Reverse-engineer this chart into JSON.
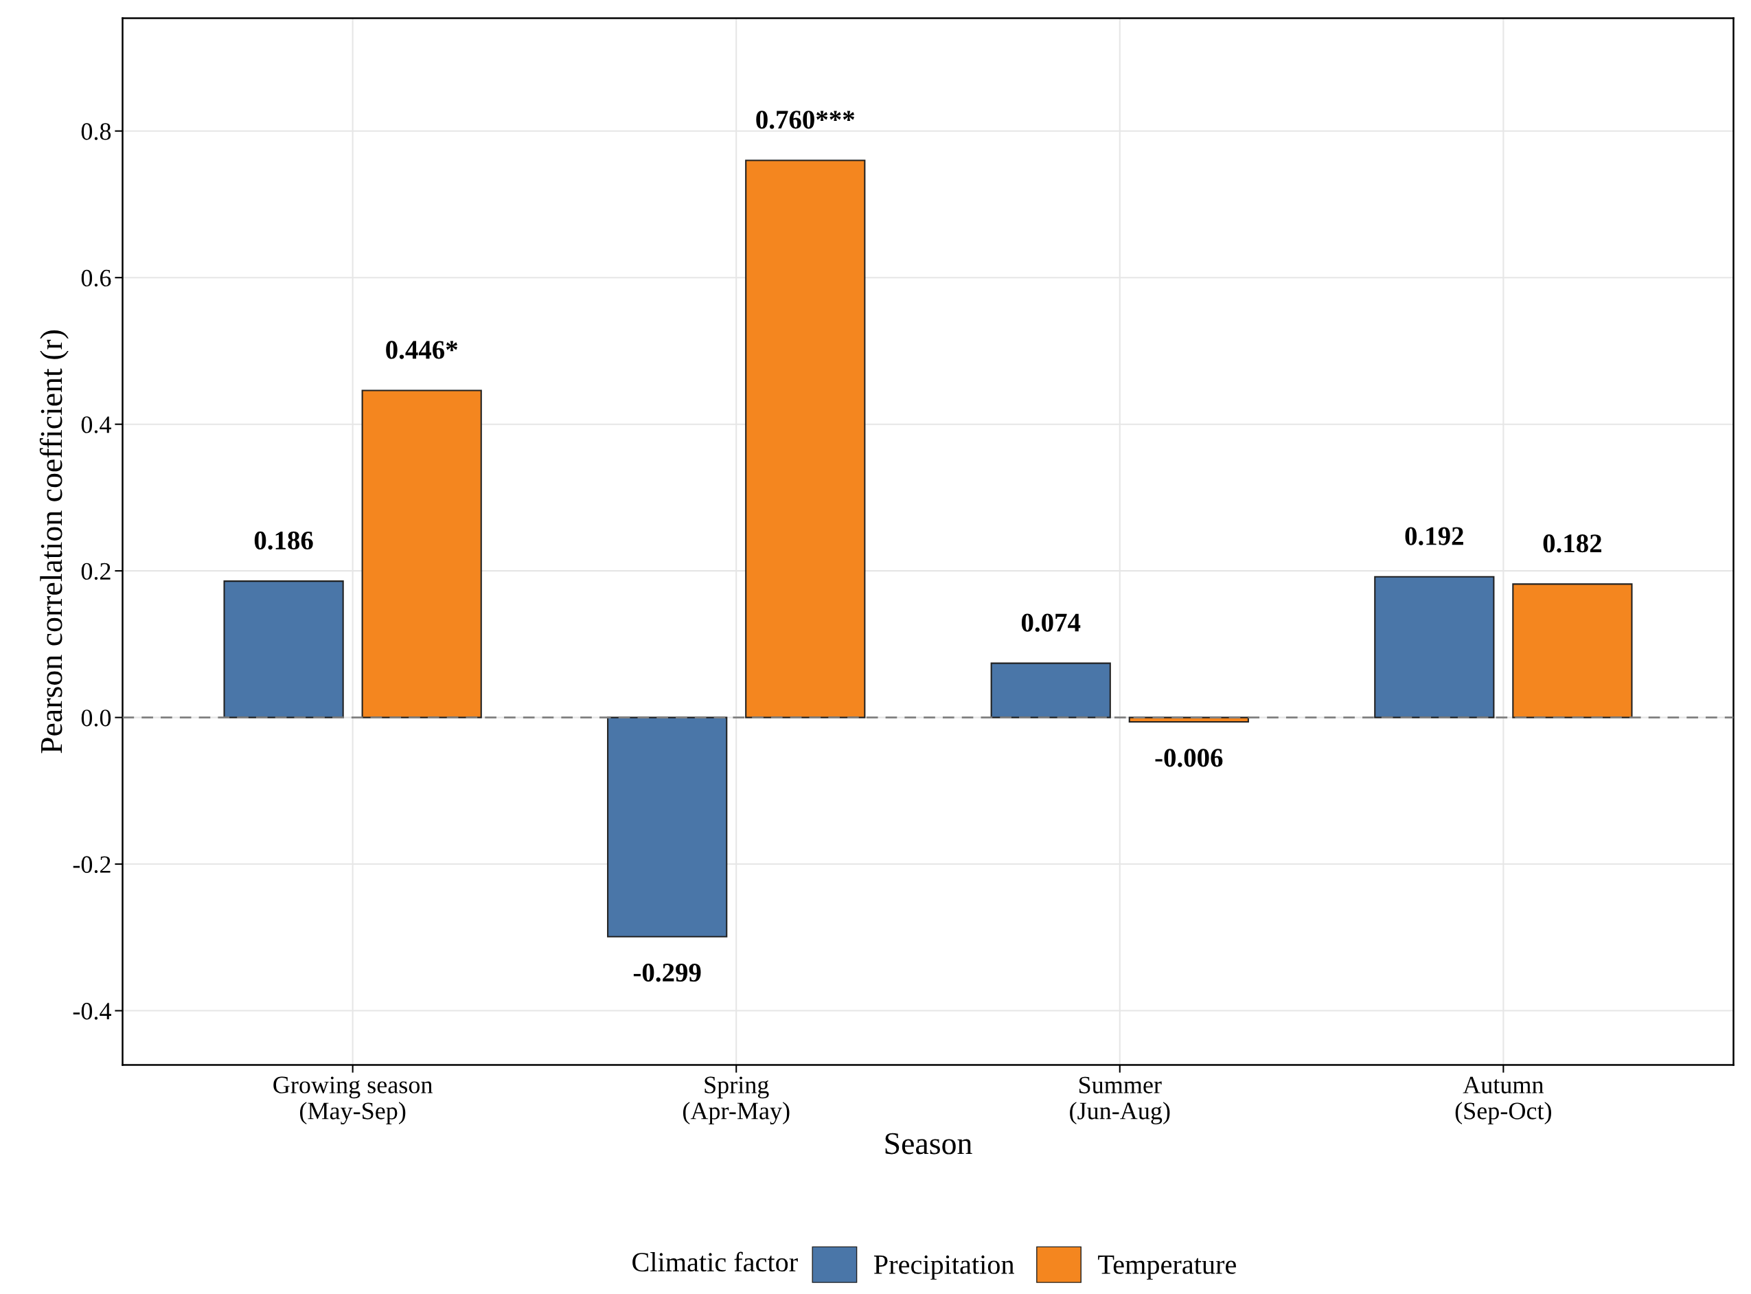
{
  "chart_data": {
    "type": "bar",
    "xlabel": "Season",
    "ylabel": "Pearson correlation coefficient (r)",
    "legend_title": "Climatic factor",
    "categories": [
      "Growing season\n(May-Sep)",
      "Spring\n(Apr-May)",
      "Summer\n(Jun-Aug)",
      "Autumn\n(Sep-Oct)"
    ],
    "series": [
      {
        "name": "Precipitation",
        "color": "#4a76a8",
        "values": [
          0.186,
          -0.299,
          0.074,
          0.192
        ],
        "value_labels": [
          "0.186",
          "-0.299",
          "0.074",
          "0.192"
        ]
      },
      {
        "name": "Temperature",
        "color": "#f4861f",
        "values": [
          0.446,
          0.76,
          -0.006,
          0.182
        ],
        "value_labels": [
          "0.446*",
          "0.760***",
          "-0.006",
          "0.182"
        ]
      }
    ],
    "ylim": [
      -0.474,
      0.954
    ],
    "yticks": [
      {
        "value": -0.4,
        "label": "-0.4"
      },
      {
        "value": -0.2,
        "label": "-0.2"
      },
      {
        "value": 0,
        "label": "0.0"
      },
      {
        "value": 0.2,
        "label": "0.2"
      },
      {
        "value": 0.4,
        "label": "0.4"
      },
      {
        "value": 0.6,
        "label": "0.6"
      },
      {
        "value": 0.8,
        "label": "0.8"
      }
    ],
    "ref_lines": [
      {
        "axis": "y",
        "value": 0,
        "color": "#808080",
        "line_style": "dashed"
      }
    ],
    "grid": true,
    "legend": "bottom"
  }
}
